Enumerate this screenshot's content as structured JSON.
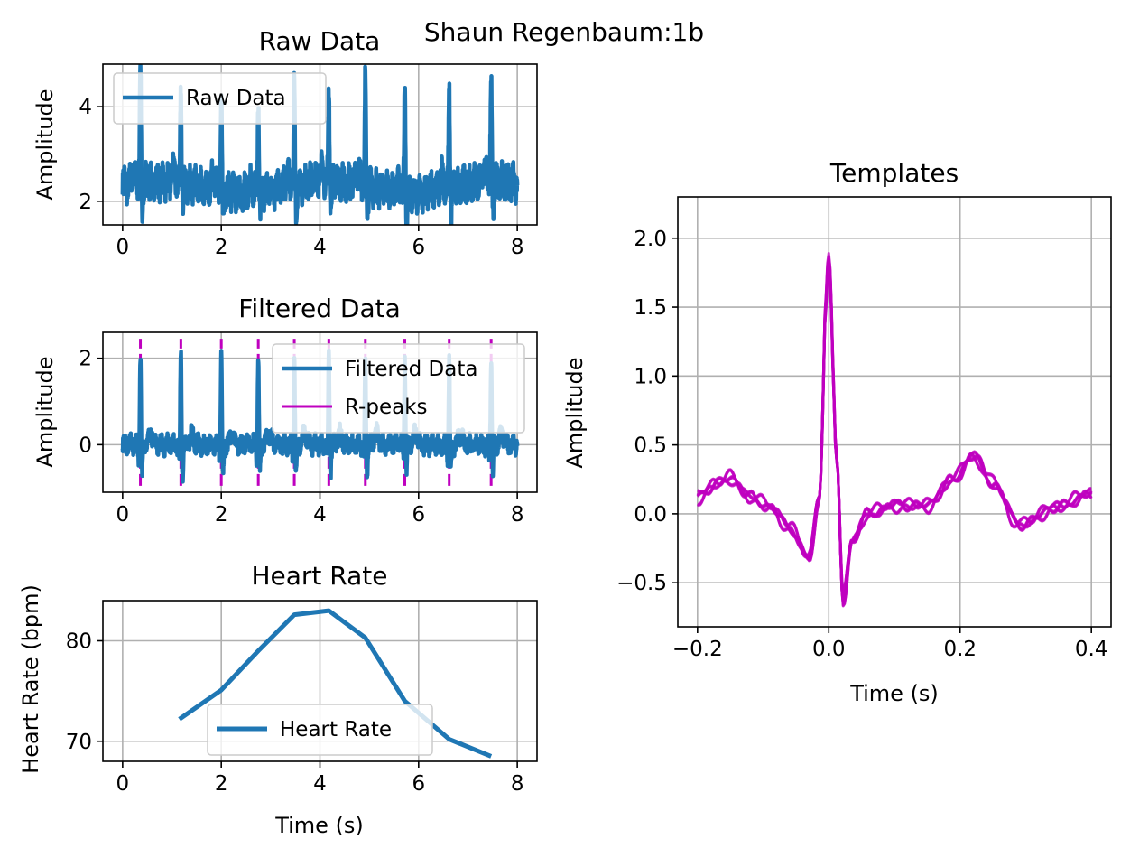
{
  "figure": {
    "suptitle": "Shaun Regenbaum:1b"
  },
  "colors": {
    "series_blue": "#1f77b4",
    "rpeak_magenta": "#bf00bf",
    "grid": "#b0b0b0"
  },
  "chart_data": [
    {
      "id": "raw",
      "type": "line",
      "title": "Raw Data",
      "xlabel": "",
      "ylabel": "Amplitude",
      "xlim": [
        -0.4,
        8.4
      ],
      "ylim": [
        1.5,
        4.9
      ],
      "xticks": [
        0,
        2,
        4,
        6,
        8
      ],
      "yticks": [
        2,
        4
      ],
      "grid": true,
      "legend": {
        "placement": "upper-left",
        "entries": [
          "Raw Data"
        ]
      },
      "beat_times": [
        0.36,
        1.18,
        2.0,
        2.75,
        3.48,
        4.18,
        4.92,
        5.72,
        6.62,
        7.47
      ],
      "peak_values": [
        4.75,
        4.4,
        4.45,
        4.2,
        4.35,
        4.3,
        4.6,
        4.55,
        4.5,
        4.45
      ],
      "series": [
        {
          "name": "Raw Data",
          "x_range": [
            0,
            8
          ],
          "baseline": 2.3
        }
      ]
    },
    {
      "id": "filtered",
      "type": "line",
      "title": "Filtered Data",
      "xlabel": "",
      "ylabel": "Amplitude",
      "xlim": [
        -0.4,
        8.4
      ],
      "ylim": [
        -1.1,
        2.6
      ],
      "xticks": [
        0,
        2,
        4,
        6,
        8
      ],
      "yticks": [
        0,
        2
      ],
      "grid": true,
      "legend": {
        "placement": "upper-right",
        "entries": [
          "Filtered Data",
          "R-peaks"
        ]
      },
      "r_peaks": [
        0.36,
        1.18,
        2.0,
        2.75,
        3.48,
        4.18,
        4.92,
        5.72,
        6.62,
        7.47
      ],
      "r_peak_ylim": [
        -0.95,
        2.45
      ],
      "peak_values": [
        2.1,
        2.15,
        2.15,
        2.1,
        2.1,
        2.05,
        2.1,
        2.05,
        2.05,
        2.05
      ],
      "series": [
        {
          "name": "Filtered Data",
          "x_range": [
            0,
            8
          ]
        },
        {
          "name": "R-peaks",
          "type": "vlines"
        }
      ]
    },
    {
      "id": "heartrate",
      "type": "line",
      "title": "Heart Rate",
      "xlabel": "Time (s)",
      "ylabel": "Heart Rate (bpm)",
      "xlim": [
        -0.4,
        8.4
      ],
      "ylim": [
        68,
        84
      ],
      "xticks": [
        0,
        2,
        4,
        6,
        8
      ],
      "yticks": [
        70,
        80
      ],
      "grid": true,
      "legend": {
        "placement": "lower-center",
        "entries": [
          "Heart Rate"
        ]
      },
      "series": [
        {
          "name": "Heart Rate",
          "x": [
            1.15,
            2.0,
            2.75,
            3.48,
            4.18,
            4.92,
            5.72,
            6.62,
            7.47
          ],
          "y": [
            72.2,
            75.1,
            79.0,
            82.6,
            83.0,
            80.3,
            74.0,
            70.2,
            68.5
          ]
        }
      ]
    },
    {
      "id": "templates",
      "type": "line",
      "title": "Templates",
      "xlabel": "Time (s)",
      "ylabel": "Amplitude",
      "xlim": [
        -0.23,
        0.43
      ],
      "ylim": [
        -0.82,
        2.3
      ],
      "xticks": [
        -0.2,
        0.0,
        0.2,
        0.4
      ],
      "xtick_labels": [
        "−0.2",
        "0.0",
        "0.2",
        "0.4"
      ],
      "yticks": [
        -0.5,
        0.0,
        0.5,
        1.0,
        1.5,
        2.0
      ],
      "ytick_labels": [
        "−0.5",
        "0.0",
        "0.5",
        "1.0",
        "1.5",
        "2.0"
      ],
      "grid": true,
      "template_count": 10,
      "template_shape": {
        "t": [
          -0.2,
          -0.17,
          -0.15,
          -0.12,
          -0.09,
          -0.06,
          -0.03,
          -0.015,
          0.0,
          0.012,
          0.022,
          0.035,
          0.06,
          0.1,
          0.15,
          0.19,
          0.22,
          0.25,
          0.29,
          0.35,
          0.4
        ],
        "v": [
          0.12,
          0.22,
          0.26,
          0.12,
          0.05,
          -0.1,
          -0.32,
          0.1,
          2.1,
          0.4,
          -0.63,
          -0.2,
          0.0,
          0.06,
          0.06,
          0.25,
          0.42,
          0.22,
          -0.08,
          0.05,
          0.15
        ]
      }
    }
  ]
}
